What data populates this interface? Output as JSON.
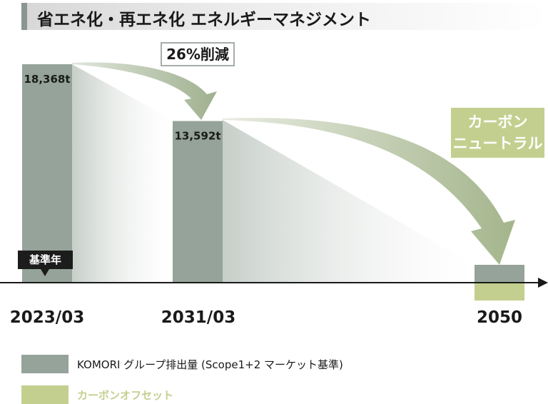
{
  "title": "省エネ化・再エネ化 エネルギーマネジメント",
  "colors": {
    "emissions": "#95a39a",
    "offset": "#c3cf8e",
    "arrow": "#a9b79b"
  },
  "chart_data": {
    "type": "bar",
    "categories": [
      "2023/03",
      "2031/03",
      "2050"
    ],
    "series": [
      {
        "name": "KOMORI グループ排出量 (Scope1+2 マーケット基準)",
        "values": [
          18368,
          13592,
          null
        ],
        "labels": [
          "18,368t",
          "13,592t",
          ""
        ]
      },
      {
        "name": "カーボンオフセット",
        "values": [
          null,
          null,
          null
        ]
      }
    ],
    "annotations": {
      "reduction": "26%削減",
      "neutral_line1": "カーボン",
      "neutral_line2": "ニュートラル",
      "base_year": "基準年"
    }
  }
}
